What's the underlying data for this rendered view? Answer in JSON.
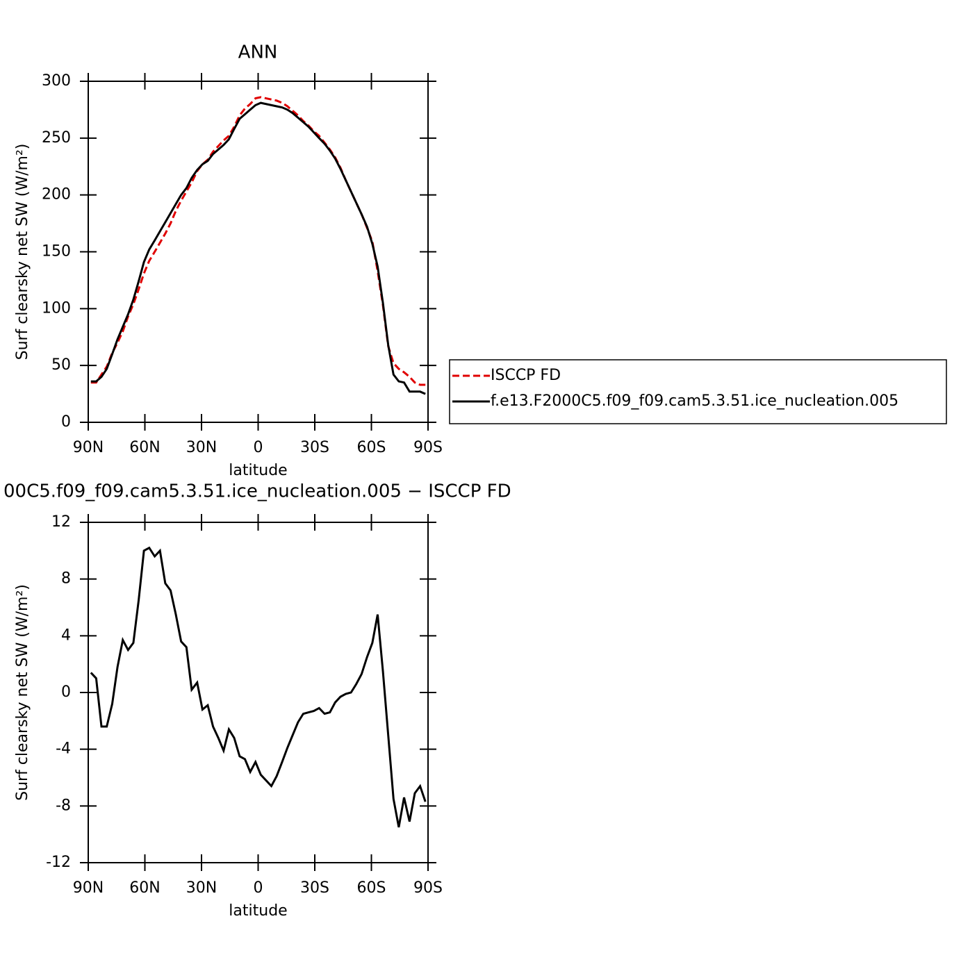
{
  "chart_data": [
    {
      "type": "line",
      "title": "ANN",
      "x_label": "latitude",
      "y_label": "Surf clearsky net SW (W/m²)",
      "x": [
        88.6,
        85.8,
        83.0,
        80.2,
        77.3,
        74.5,
        71.7,
        68.9,
        66.1,
        63.3,
        60.5,
        57.7,
        54.8,
        52.0,
        49.2,
        46.4,
        43.6,
        40.8,
        38.0,
        35.2,
        32.3,
        29.5,
        26.7,
        23.9,
        21.1,
        18.3,
        15.5,
        12.7,
        9.8,
        7.0,
        4.2,
        1.4,
        -1.4,
        -4.2,
        -7.0,
        -9.8,
        -12.7,
        -15.5,
        -18.3,
        -21.1,
        -23.9,
        -26.7,
        -29.5,
        -32.3,
        -35.2,
        -38.0,
        -40.8,
        -43.6,
        -46.4,
        -49.2,
        -52.0,
        -54.8,
        -57.7,
        -60.5,
        -63.3,
        -66.1,
        -68.9,
        -71.7,
        -74.5,
        -77.3,
        -80.2,
        -83.0,
        -85.8,
        -88.6
      ],
      "series": [
        {
          "name": "ISCCP FD",
          "color": "#e00000",
          "style": "dashed",
          "values": [
            35,
            35,
            42,
            49,
            61,
            70,
            80,
            93,
            104,
            117,
            131,
            142,
            150,
            158,
            166,
            175,
            186,
            195,
            203,
            211,
            221,
            227,
            231,
            238,
            243,
            248,
            252,
            260,
            270,
            276,
            280,
            285,
            286,
            285,
            284,
            283,
            281,
            278,
            274,
            270,
            265,
            261,
            256,
            252,
            246,
            240,
            233,
            224,
            213,
            203,
            193,
            183,
            171,
            159,
            133,
            103,
            67,
            52,
            47,
            44,
            40,
            35,
            33,
            33
          ]
        },
        {
          "name": "f.e13.F2000C5.f09_f09.cam5.3.51.ice_nucleation.005",
          "color": "#000000",
          "style": "solid",
          "values": [
            36,
            36,
            40,
            47,
            60,
            73,
            84,
            95,
            108,
            124,
            141,
            152,
            160,
            168,
            176,
            184,
            192,
            200,
            206,
            215,
            222,
            227,
            230,
            236,
            240,
            244,
            249,
            258,
            267,
            271,
            275,
            279,
            281,
            280,
            279,
            278,
            277,
            275,
            272,
            268,
            264,
            260,
            255,
            250,
            245,
            239,
            232,
            223,
            213,
            203,
            193,
            183,
            172,
            157,
            137,
            105,
            68,
            42,
            36,
            35,
            27,
            27,
            27,
            25
          ]
        }
      ],
      "xlim": [
        90,
        -90
      ],
      "xticks": [
        {
          "value": 90,
          "label": "90N"
        },
        {
          "value": 60,
          "label": "60N"
        },
        {
          "value": 30,
          "label": "30N"
        },
        0,
        {
          "value": -30,
          "label": "30S"
        },
        {
          "value": -60,
          "label": "60S"
        },
        {
          "value": -90,
          "label": "90S"
        }
      ],
      "ylim": [
        0,
        300
      ],
      "yticks": [
        0,
        50,
        100,
        150,
        200,
        250,
        300
      ],
      "legend": "right"
    },
    {
      "type": "line",
      "title": "00C5.f09_f09.cam5.3.51.ice_nucleation.005 − ISCCP FD",
      "x_label": "latitude",
      "y_label": "Surf clearsky net SW (W/m²)",
      "x": [
        88.6,
        85.8,
        83.0,
        80.2,
        77.3,
        74.5,
        71.7,
        68.9,
        66.1,
        63.3,
        60.5,
        57.7,
        54.8,
        52.0,
        49.2,
        46.4,
        43.6,
        40.8,
        38.0,
        35.2,
        32.3,
        29.5,
        26.7,
        23.9,
        21.1,
        18.3,
        15.5,
        12.7,
        9.8,
        7.0,
        4.2,
        1.4,
        -1.4,
        -4.2,
        -7.0,
        -9.8,
        -12.7,
        -15.5,
        -18.3,
        -21.1,
        -23.9,
        -26.7,
        -29.5,
        -32.3,
        -35.2,
        -38.0,
        -40.8,
        -43.6,
        -46.4,
        -49.2,
        -52.0,
        -54.8,
        -57.7,
        -60.5,
        -63.3,
        -66.1,
        -68.9,
        -71.7,
        -74.5,
        -77.3,
        -80.2,
        -83.0,
        -85.8,
        -88.6
      ],
      "series": [
        {
          "color": "#000000",
          "style": "solid",
          "values": [
            1.4,
            1.0,
            -2.4,
            -2.4,
            -0.8,
            1.8,
            3.7,
            3.0,
            3.5,
            6.5,
            10.0,
            10.2,
            9.6,
            10.0,
            7.7,
            7.2,
            5.5,
            3.6,
            3.2,
            0.2,
            0.7,
            -1.2,
            -0.9,
            -2.4,
            -3.2,
            -4.1,
            -2.6,
            -3.2,
            -4.5,
            -4.7,
            -5.6,
            -4.9,
            -5.8,
            -6.2,
            -6.6,
            -5.9,
            -4.9,
            -3.9,
            -3.0,
            -2.1,
            -1.5,
            -1.4,
            -1.3,
            -1.1,
            -1.5,
            -1.4,
            -0.7,
            -0.3,
            -0.1,
            0.0,
            0.6,
            1.3,
            2.5,
            3.5,
            5.5,
            1.5,
            -3.0,
            -7.5,
            -9.5,
            -7.4,
            -9.1,
            -7.1,
            -6.6,
            -7.7
          ]
        }
      ],
      "xlim": [
        90,
        -90
      ],
      "xticks": [
        {
          "value": 90,
          "label": "90N"
        },
        {
          "value": 60,
          "label": "60N"
        },
        {
          "value": 30,
          "label": "30N"
        },
        0,
        {
          "value": -30,
          "label": "30S"
        },
        {
          "value": -60,
          "label": "60S"
        },
        {
          "value": -90,
          "label": "90S"
        }
      ],
      "ylim": [
        -12,
        12
      ],
      "yticks": [
        -12,
        -8,
        -4,
        0,
        4,
        8,
        12
      ]
    }
  ]
}
